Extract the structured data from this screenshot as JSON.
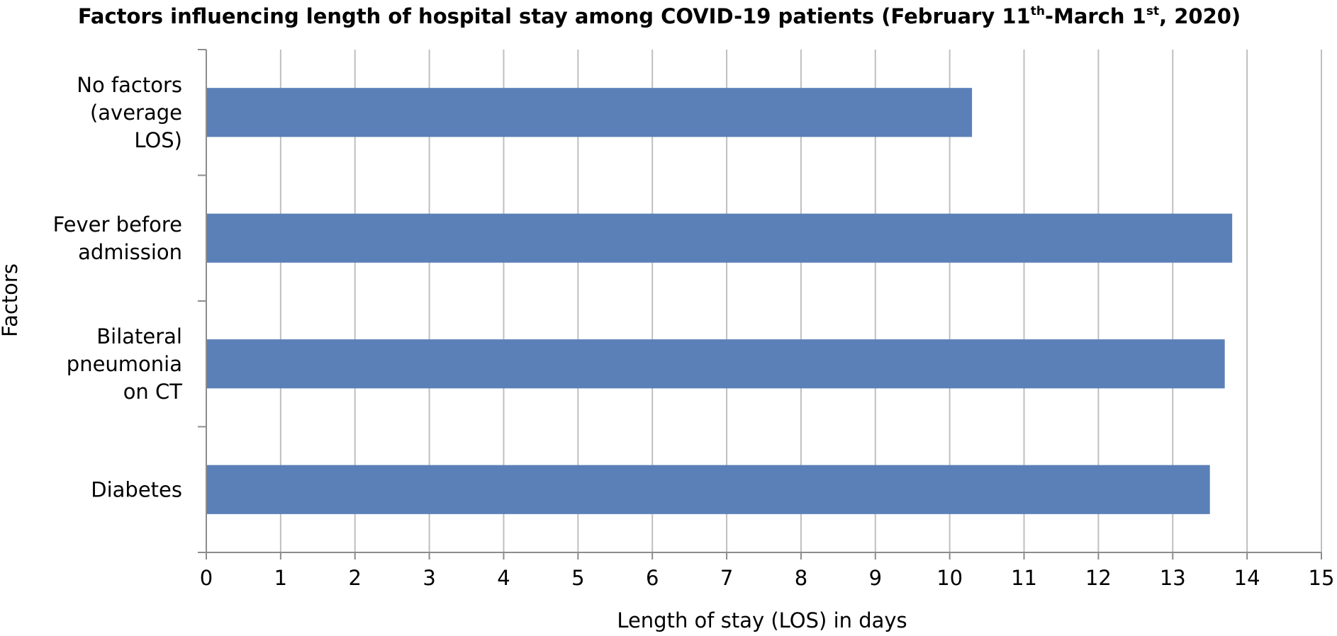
{
  "chart_data": {
    "type": "bar",
    "orientation": "horizontal",
    "title": {
      "main": "Factors influencing length of hospital stay among COVID-19 patients (February 11",
      "sup1": "th",
      "mid": "-March 1",
      "sup2": "st",
      "end": ", 2020)"
    },
    "xlabel": "Length of stay (LOS) in days",
    "ylabel": "Factors",
    "xlim": [
      0,
      15
    ],
    "xticks": [
      "0",
      "1",
      "2",
      "3",
      "4",
      "5",
      "6",
      "7",
      "8",
      "9",
      "10",
      "11",
      "12",
      "13",
      "14",
      "15"
    ],
    "categories": [
      [
        "No factors",
        "(average",
        "LOS)"
      ],
      [
        "Fever before",
        "admission"
      ],
      [
        "Bilateral",
        "pneumonia",
        "on CT"
      ],
      [
        "Diabetes"
      ]
    ],
    "values": [
      10.3,
      13.8,
      13.7,
      13.5
    ],
    "grid": "vertical",
    "legend": "none",
    "colors": {
      "bar": "#5b80b8",
      "grid": "#bfbfbf",
      "axis": "#8c8c8c"
    }
  }
}
